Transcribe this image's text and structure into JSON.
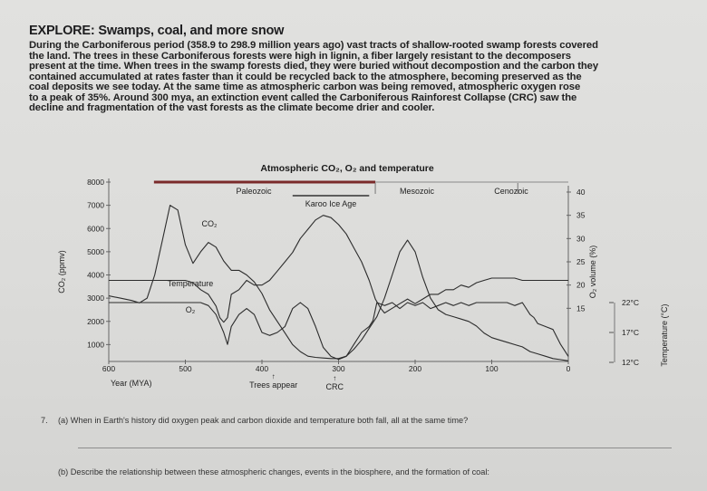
{
  "heading": "EXPLORE: Swamps, coal, and more snow",
  "intro_lines": [
    "During the Carboniferous period (358.9 to 298.9 million years ago) vast tracts of shallow-rooted swamp forests covered",
    "the land. The trees in these Carboniferous forests were high in lignin, a fiber largely resistant to the decomposers",
    "present at the time. When trees in the swamp forests died, they were buried without decompostion and the carbon they",
    "contained accumulated at rates faster than it could be recycled back to the atmosphere, becoming preserved as the",
    "coal deposits we see today. At the same time as atmospheric carbon was being removed, atmospheric oxygen rose",
    "to a peak of 35%. Around 300 mya, an extinction event called the Carboniferous Rainforest Collapse (CRC) saw the",
    "decline and fragmentation of the vast forests as the climate become drier and cooler."
  ],
  "chart_data": {
    "type": "line",
    "title": "Atmospheric CO₂, O₂ and temperature",
    "xlabel": "Year (MYA)",
    "x_ticks": [
      "600",
      "500",
      "400",
      "300",
      "200",
      "100",
      "0"
    ],
    "xlim": [
      600,
      0
    ],
    "ylabel_left": "CO₂ (ppmv)",
    "y_left_ticks": [
      "8000",
      "7000",
      "6000",
      "5000",
      "4000",
      "3000",
      "2000",
      "1000"
    ],
    "ylim_left": [
      0,
      8000
    ],
    "ylabel_right": "O₂ volume (%)",
    "y_right_ticks": [
      "40",
      "35",
      "30",
      "25",
      "20",
      "15"
    ],
    "ylim_right": [
      10,
      40
    ],
    "ylabel_temp": "Temperature (°C)",
    "temp_ticks": [
      "22°C",
      "17°C",
      "12°C"
    ],
    "eras": [
      "Paleozoic",
      "Mesozoic",
      "Cenozoic"
    ],
    "era_bounds": [
      [
        541,
        252
      ],
      [
        252,
        66
      ],
      [
        66,
        0
      ]
    ],
    "events": [
      {
        "label": "Karoo Ice Age",
        "range": [
          360,
          260
        ]
      },
      {
        "label": "Trees appear",
        "x": 385
      },
      {
        "label": "CRC",
        "x": 305
      }
    ],
    "series": [
      {
        "name": "CO₂",
        "axis": "left",
        "x": [
          600,
          585,
          570,
          560,
          550,
          540,
          530,
          520,
          510,
          500,
          490,
          480,
          470,
          460,
          450,
          440,
          430,
          420,
          410,
          400,
          390,
          380,
          370,
          360,
          350,
          340,
          330,
          320,
          310,
          300,
          290,
          280,
          270,
          260,
          250,
          240,
          230,
          220,
          210,
          200,
          190,
          180,
          170,
          160,
          150,
          140,
          130,
          120,
          110,
          100,
          90,
          80,
          70,
          60,
          50,
          40,
          30,
          20,
          10,
          0
        ],
        "y": [
          3100,
          3000,
          2900,
          2800,
          3000,
          4000,
          5500,
          7000,
          6800,
          5300,
          4500,
          5000,
          5400,
          5200,
          4600,
          4200,
          4200,
          4000,
          3700,
          3200,
          2500,
          2000,
          1500,
          1000,
          700,
          500,
          450,
          420,
          400,
          400,
          500,
          800,
          1200,
          1700,
          2200,
          3000,
          4000,
          5000,
          5500,
          5000,
          3900,
          3000,
          2500,
          2300,
          2200,
          2100,
          2000,
          1800,
          1500,
          1300,
          1200,
          1100,
          1000,
          900,
          700,
          600,
          500,
          400,
          350,
          300
        ]
      },
      {
        "name": "O₂",
        "axis": "right",
        "x": [
          600,
          570,
          540,
          520,
          500,
          490,
          480,
          470,
          460,
          455,
          450,
          445,
          440,
          430,
          420,
          410,
          400,
          390,
          380,
          370,
          360,
          350,
          340,
          330,
          320,
          310,
          300,
          290,
          280,
          270,
          260,
          252,
          245,
          240,
          230,
          220,
          210,
          200,
          190,
          180,
          170,
          160,
          150,
          140,
          130,
          120,
          110,
          100,
          90,
          80,
          70,
          60,
          50,
          40,
          30,
          20,
          10,
          0
        ],
        "y": [
          21,
          21,
          21,
          21,
          21,
          20.5,
          19,
          18,
          15.5,
          13,
          12,
          13,
          18,
          19,
          21,
          20,
          20,
          21,
          23,
          25,
          27,
          30,
          32,
          34,
          35,
          34.5,
          33,
          31,
          28,
          25,
          21,
          17,
          15,
          14,
          15,
          16,
          17,
          16,
          17,
          18,
          18,
          19,
          19,
          20,
          19.5,
          20.5,
          21,
          21.5,
          21.5,
          21.5,
          21.5,
          21,
          21,
          21,
          21,
          21,
          21,
          21
        ]
      },
      {
        "name": "Temperature",
        "axis": "temp",
        "x": [
          600,
          560,
          540,
          520,
          500,
          480,
          470,
          460,
          450,
          445,
          440,
          430,
          420,
          410,
          400,
          390,
          380,
          370,
          360,
          350,
          340,
          330,
          320,
          310,
          300,
          290,
          280,
          270,
          260,
          255,
          250,
          240,
          230,
          220,
          210,
          200,
          190,
          180,
          170,
          160,
          150,
          140,
          130,
          120,
          110,
          100,
          90,
          80,
          70,
          60,
          50,
          45,
          40,
          30,
          20,
          10,
          5,
          0
        ],
        "y": [
          22,
          22,
          22,
          22,
          22,
          22,
          21.5,
          20,
          17,
          15,
          18,
          20,
          21,
          20,
          17,
          16.5,
          17,
          18,
          21,
          22,
          21,
          18,
          14.5,
          13,
          12.5,
          13,
          15,
          17,
          18,
          19,
          22,
          21.5,
          22,
          21,
          22,
          21.5,
          22,
          21,
          21.5,
          22,
          21.5,
          22,
          21.5,
          22,
          22,
          22,
          22,
          22,
          21.5,
          22,
          20,
          19.5,
          18.5,
          18,
          17.5,
          15,
          14,
          13
        ]
      }
    ],
    "annotations": [
      {
        "text": "CO₂",
        "series": "CO₂"
      },
      {
        "text": "Temperature",
        "series": "Temperature"
      },
      {
        "text": "O₂",
        "series": "O₂"
      }
    ],
    "colors": {
      "paleozoic_band": "#7a2a2a",
      "lines": "#2c2c2c"
    }
  },
  "questions": {
    "q7_number": "7.",
    "q7a": "(a) When in Earth's history did oxygen peak and carbon dioxide and temperature both fall, all at the same time?",
    "q7b": "(b) Describe the relationship between these atmospheric changes, events in the biosphere, and the formation of coal:"
  }
}
